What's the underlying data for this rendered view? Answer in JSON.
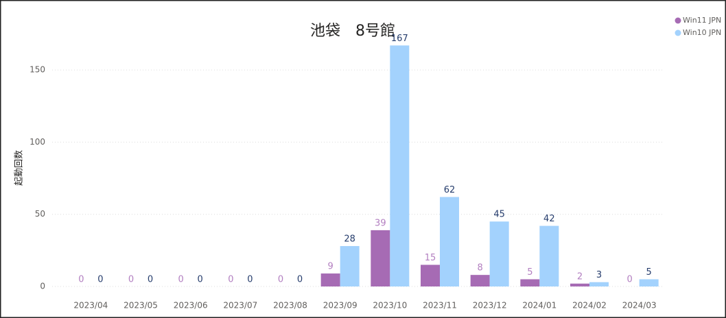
{
  "chart_data": {
    "type": "bar",
    "title": "池袋　8号館",
    "y_label": "起動回数",
    "categories": [
      "2023/04",
      "2023/05",
      "2023/06",
      "2023/07",
      "2023/08",
      "2023/09",
      "2023/10",
      "2023/11",
      "2023/12",
      "2024/01",
      "2024/02",
      "2024/03"
    ],
    "series": [
      {
        "name": "Win11 JPN",
        "color": "#a66bb4",
        "label_color": "#b27ec0",
        "values": [
          0,
          0,
          0,
          0,
          0,
          9,
          39,
          15,
          8,
          5,
          2,
          0
        ]
      },
      {
        "name": "Win10 JPN",
        "color": "#a3d2fd",
        "label_color": "#253c6c",
        "values": [
          0,
          0,
          0,
          0,
          0,
          28,
          167,
          62,
          45,
          42,
          3,
          5
        ]
      }
    ],
    "ylim": [
      0,
      170
    ],
    "yticks": [
      0,
      50,
      100,
      150
    ],
    "grid": true,
    "legend": "top-right"
  }
}
